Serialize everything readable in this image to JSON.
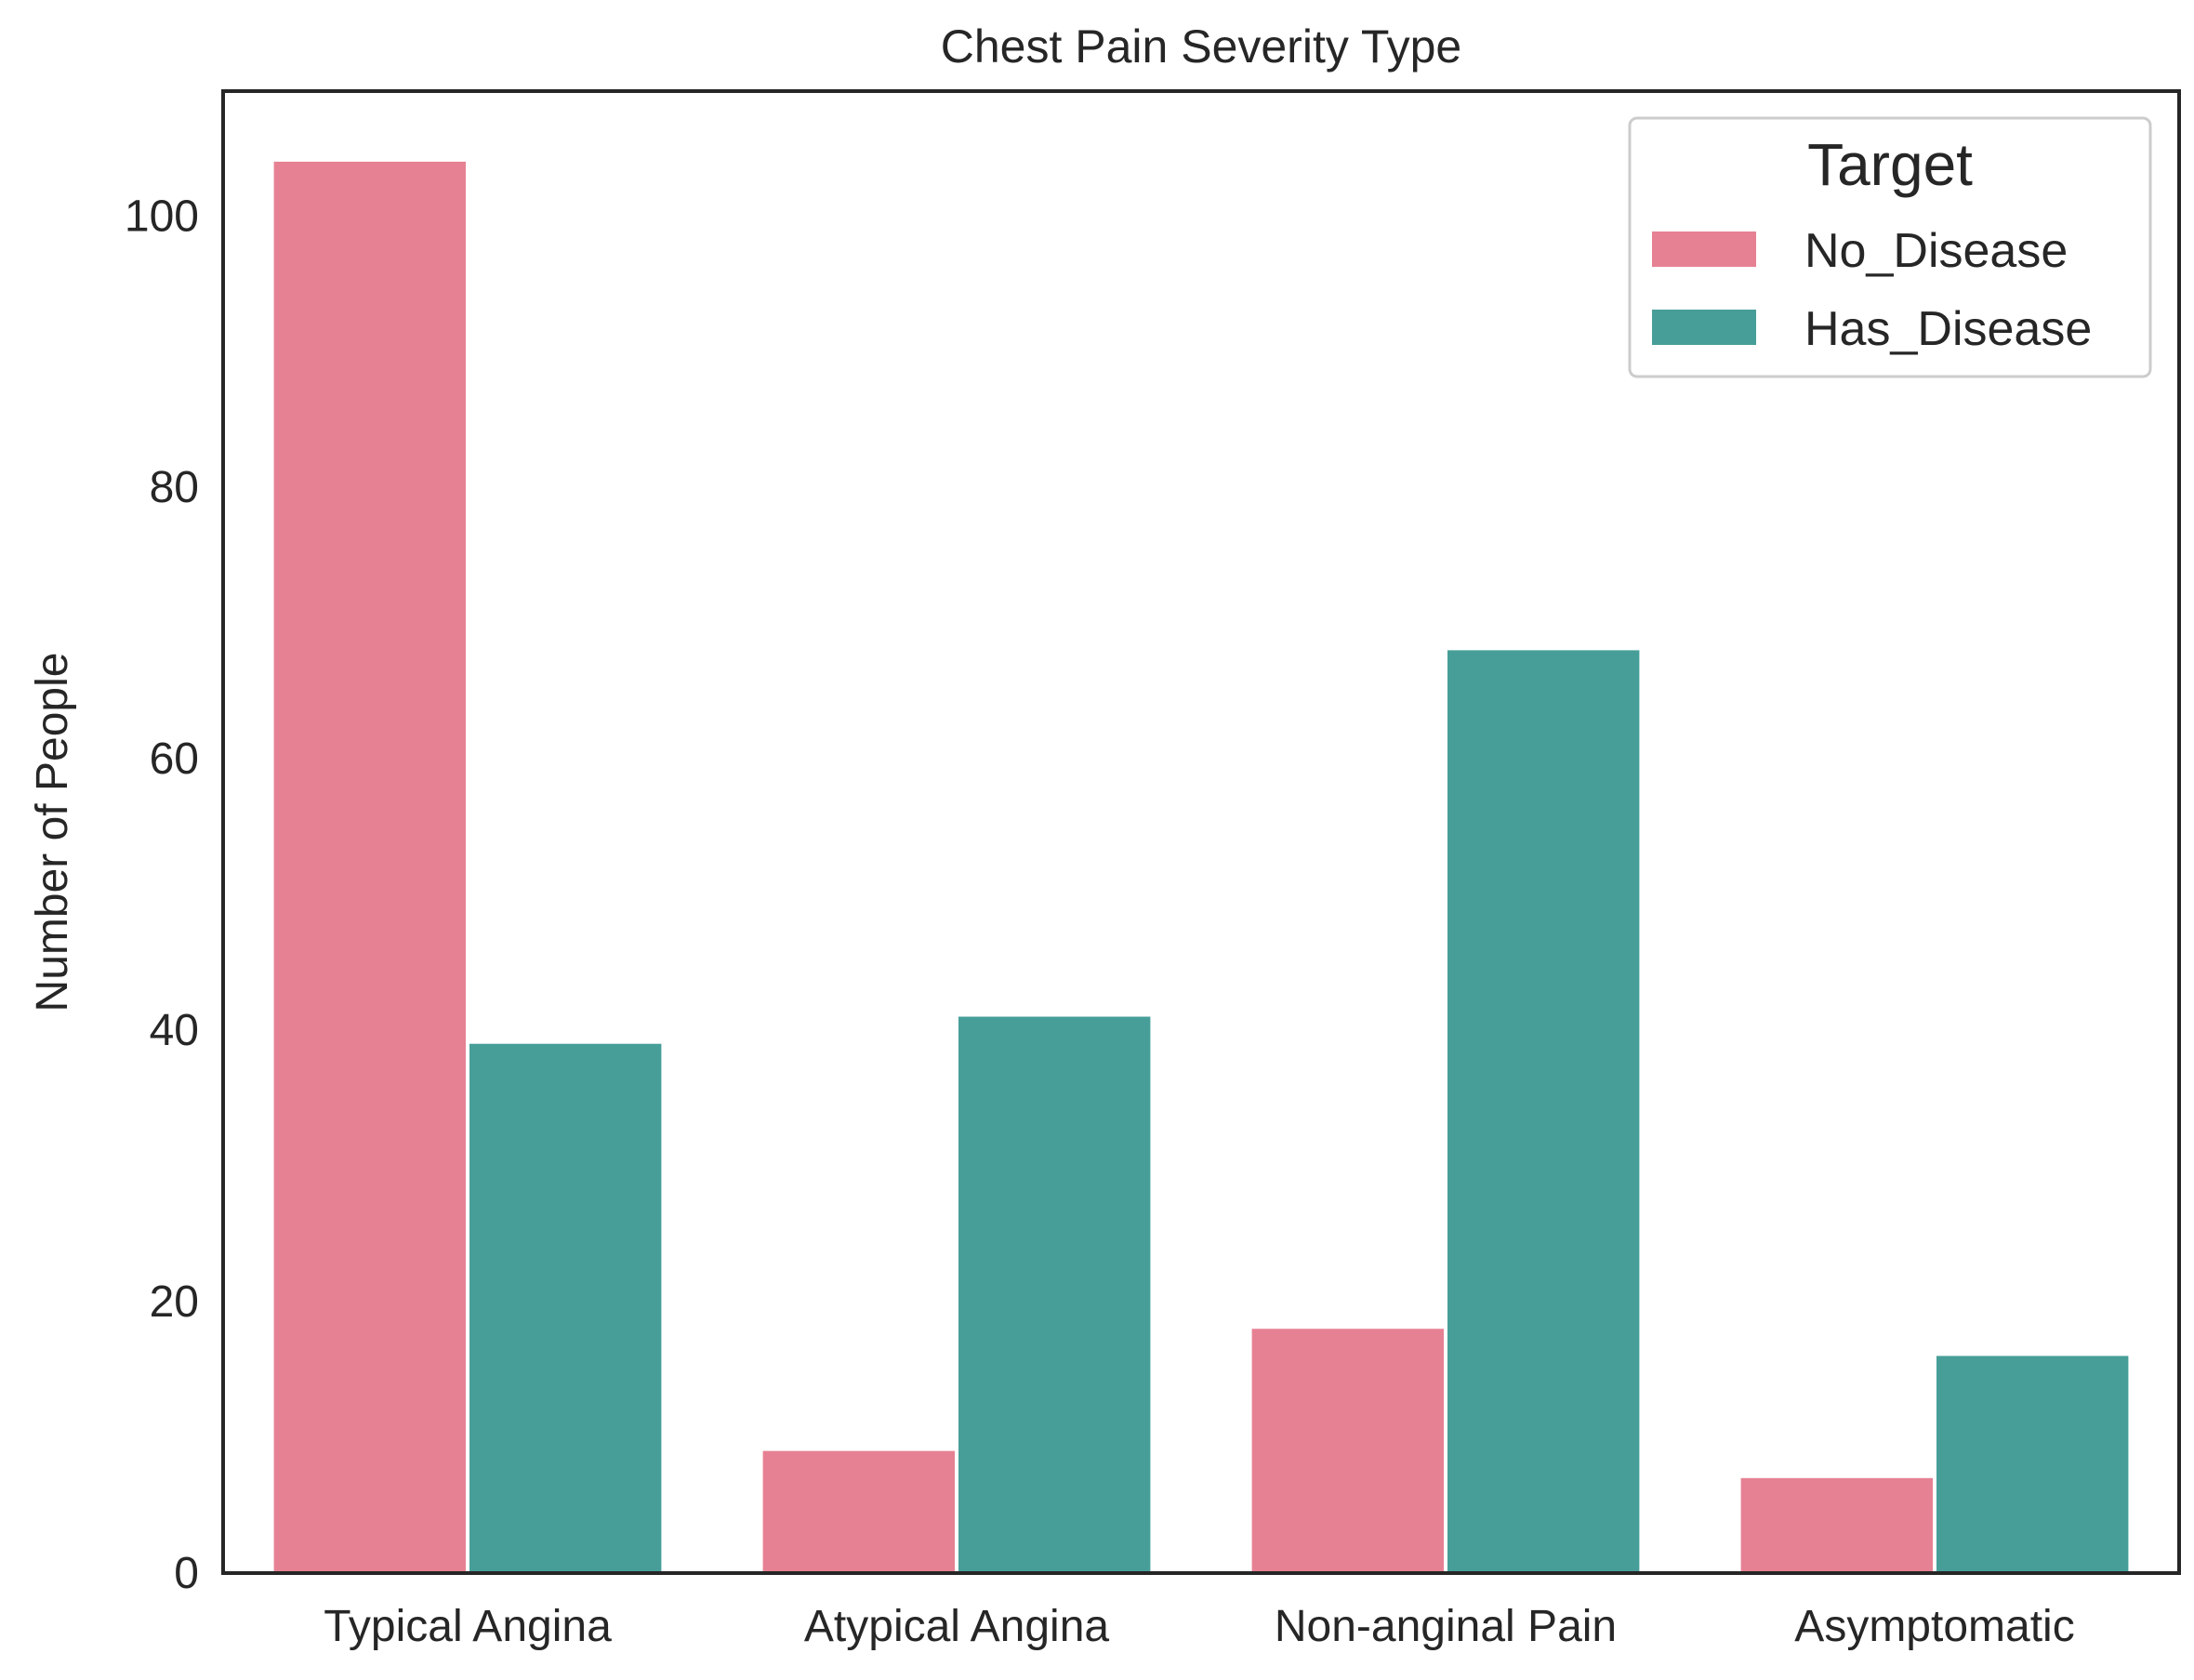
{
  "chart_data": {
    "type": "bar",
    "title": "Chest Pain Severity Type",
    "xlabel": "",
    "ylabel": "Number of People",
    "categories": [
      "Typical Angina",
      "Atypical Angina",
      "Non-anginal Pain",
      "Asymptomatic"
    ],
    "series": [
      {
        "name": "No_Disease",
        "values": [
          104,
          9,
          18,
          7
        ],
        "color": "#e68193"
      },
      {
        "name": "Has_Disease",
        "values": [
          39,
          41,
          68,
          16
        ],
        "color": "#479e98"
      }
    ],
    "ylim": [
      0,
      109.2
    ],
    "yticks": [
      0,
      20,
      40,
      60,
      80,
      100
    ],
    "grid": false,
    "legend": {
      "title": "Target",
      "position": "top-right"
    }
  }
}
